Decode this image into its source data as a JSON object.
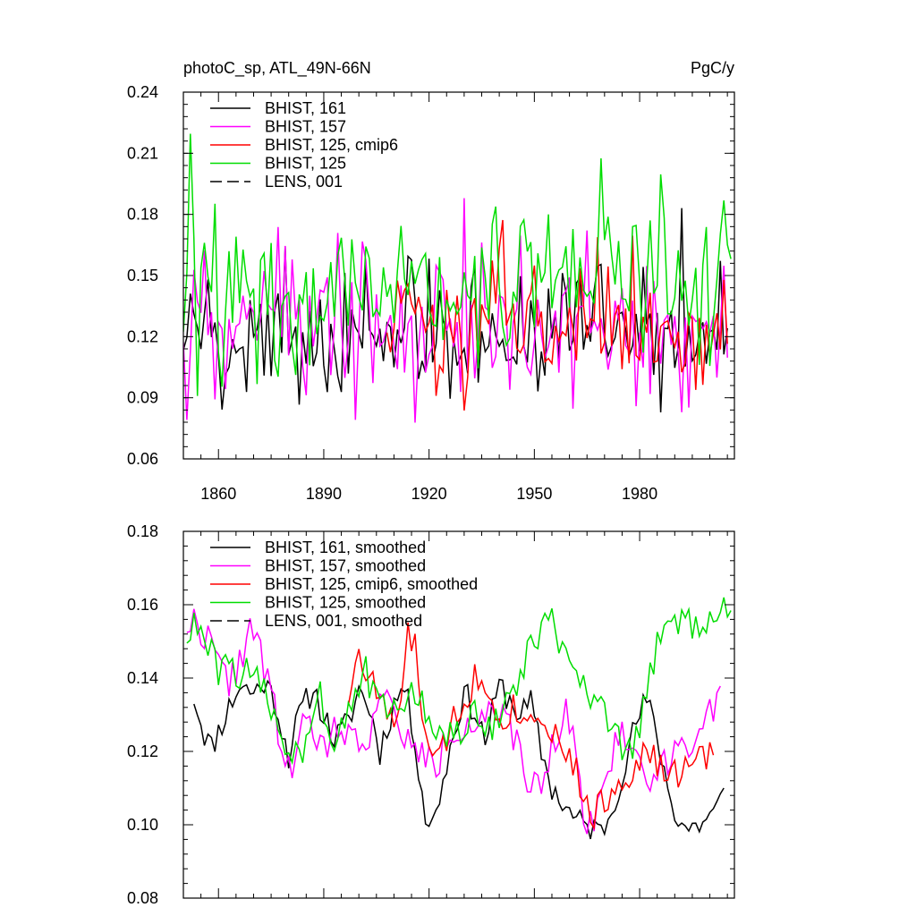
{
  "chart_data": [
    {
      "type": "line",
      "title": "photoC_sp, ATL_49N-66N",
      "units": "PgC/y",
      "xlabel": "",
      "ylabel": "",
      "xlim": [
        1850,
        2007
      ],
      "ylim": [
        0.06,
        0.24
      ],
      "xticks": [
        1860,
        1890,
        1920,
        1950,
        1980
      ],
      "xtick_labels": [
        "1860",
        "1890",
        "1920",
        "1950",
        "1980"
      ],
      "yticks": [
        0.06,
        0.09,
        0.12,
        0.15,
        0.18,
        0.21,
        0.24
      ],
      "ytick_labels": [
        "0.06",
        "0.09",
        "0.12",
        "0.15",
        "0.18",
        "0.21",
        "0.24"
      ],
      "legend_position": "top-left",
      "series": [
        {
          "name": "BHIST, 161",
          "color": "#000000",
          "dash": "solid",
          "x_start": 1850,
          "x_end": 2005,
          "seed": 161,
          "mean": 0.122,
          "amp": 0.026,
          "trend": -0.004
        },
        {
          "name": "BHIST, 157",
          "color": "#ff00ff",
          "dash": "solid",
          "x_start": 1850,
          "x_end": 2005,
          "seed": 157,
          "mean": 0.13,
          "amp": 0.028,
          "trend": -0.01
        },
        {
          "name": "BHIST, 125, cmip6",
          "color": "#ff0000",
          "dash": "solid",
          "x_start": 1908,
          "x_end": 2005,
          "seed": 125,
          "mean": 0.128,
          "amp": 0.025,
          "trend": -0.006
        },
        {
          "name": "BHIST, 125",
          "color": "#00dd00",
          "dash": "solid",
          "x_start": 1850,
          "x_end": 2006,
          "seed": 126,
          "mean": 0.138,
          "amp": 0.03,
          "trend": 0.01
        },
        {
          "name": "LENS, 001",
          "color": "#000000",
          "dash": "dashed",
          "x_start": null,
          "x_end": null
        }
      ]
    },
    {
      "type": "line",
      "title": "",
      "xlabel": "",
      "ylabel": "",
      "xlim": [
        1850,
        2007
      ],
      "ylim": [
        0.08,
        0.18
      ],
      "xticks": [
        1860,
        1890,
        1920,
        1950,
        1980
      ],
      "xtick_labels": [],
      "yticks": [
        0.08,
        0.1,
        0.12,
        0.14,
        0.16,
        0.18
      ],
      "ytick_labels": [
        "0.08",
        "0.10",
        "0.12",
        "0.14",
        "0.16",
        "0.18"
      ],
      "legend_position": "top-left",
      "series": [
        {
          "name": "BHIST, 161, smoothed",
          "color": "#000000",
          "dash": "solid",
          "x_start": 1853,
          "x_end": 2004,
          "anchors": [
            [
              1853,
              0.135
            ],
            [
              1856,
              0.125
            ],
            [
              1858,
              0.121
            ],
            [
              1862,
              0.13
            ],
            [
              1866,
              0.138
            ],
            [
              1870,
              0.136
            ],
            [
              1873,
              0.139
            ],
            [
              1876,
              0.134
            ],
            [
              1880,
              0.119
            ],
            [
              1883,
              0.13
            ],
            [
              1887,
              0.137
            ],
            [
              1890,
              0.13
            ],
            [
              1893,
              0.123
            ],
            [
              1897,
              0.128
            ],
            [
              1900,
              0.137
            ],
            [
              1903,
              0.132
            ],
            [
              1906,
              0.12
            ],
            [
              1910,
              0.133
            ],
            [
              1913,
              0.138
            ],
            [
              1916,
              0.123
            ],
            [
              1919,
              0.102
            ],
            [
              1921,
              0.1
            ],
            [
              1924,
              0.112
            ],
            [
              1927,
              0.125
            ],
            [
              1930,
              0.136
            ],
            [
              1933,
              0.131
            ],
            [
              1936,
              0.123
            ],
            [
              1940,
              0.138
            ],
            [
              1943,
              0.134
            ],
            [
              1946,
              0.13
            ],
            [
              1949,
              0.133
            ],
            [
              1952,
              0.12
            ],
            [
              1955,
              0.11
            ],
            [
              1958,
              0.106
            ],
            [
              1961,
              0.102
            ],
            [
              1964,
              0.1
            ],
            [
              1967,
              0.099
            ],
            [
              1969,
              0.098
            ],
            [
              1972,
              0.104
            ],
            [
              1975,
              0.114
            ],
            [
              1979,
              0.128
            ],
            [
              1982,
              0.134
            ],
            [
              1985,
              0.124
            ],
            [
              1988,
              0.11
            ],
            [
              1991,
              0.101
            ],
            [
              1994,
              0.099
            ],
            [
              1997,
              0.1
            ],
            [
              2001,
              0.103
            ],
            [
              2004,
              0.108
            ]
          ],
          "jitter": 0.004,
          "seed": 11
        },
        {
          "name": "BHIST, 157, smoothed",
          "color": "#ff00ff",
          "dash": "solid",
          "x_start": 1851,
          "x_end": 2003,
          "anchors": [
            [
              1851,
              0.155
            ],
            [
              1854,
              0.155
            ],
            [
              1857,
              0.151
            ],
            [
              1860,
              0.143
            ],
            [
              1863,
              0.139
            ],
            [
              1866,
              0.145
            ],
            [
              1870,
              0.154
            ],
            [
              1872,
              0.146
            ],
            [
              1875,
              0.136
            ],
            [
              1878,
              0.12
            ],
            [
              1881,
              0.115
            ],
            [
              1884,
              0.128
            ],
            [
              1887,
              0.124
            ],
            [
              1891,
              0.12
            ],
            [
              1894,
              0.128
            ],
            [
              1897,
              0.124
            ],
            [
              1900,
              0.122
            ],
            [
              1903,
              0.126
            ],
            [
              1906,
              0.134
            ],
            [
              1909,
              0.132
            ],
            [
              1912,
              0.127
            ],
            [
              1915,
              0.12
            ],
            [
              1918,
              0.119
            ],
            [
              1922,
              0.116
            ],
            [
              1925,
              0.123
            ],
            [
              1928,
              0.127
            ],
            [
              1932,
              0.128
            ],
            [
              1935,
              0.13
            ],
            [
              1938,
              0.129
            ],
            [
              1941,
              0.128
            ],
            [
              1944,
              0.124
            ],
            [
              1947,
              0.115
            ],
            [
              1950,
              0.11
            ],
            [
              1953,
              0.113
            ],
            [
              1956,
              0.125
            ],
            [
              1959,
              0.13
            ],
            [
              1962,
              0.12
            ],
            [
              1964,
              0.105
            ],
            [
              1966,
              0.1
            ],
            [
              1969,
              0.108
            ],
            [
              1972,
              0.118
            ],
            [
              1975,
              0.125
            ],
            [
              1978,
              0.123
            ],
            [
              1981,
              0.114
            ],
            [
              1984,
              0.111
            ],
            [
              1987,
              0.117
            ],
            [
              1990,
              0.122
            ],
            [
              1993,
              0.124
            ],
            [
              1996,
              0.122
            ],
            [
              1999,
              0.128
            ],
            [
              2003,
              0.133
            ]
          ],
          "jitter": 0.005,
          "seed": 22
        },
        {
          "name": "BHIST, 125, cmip6, smoothed",
          "color": "#ff0000",
          "dash": "solid",
          "x_start": 1897,
          "x_end": 2001,
          "anchors": [
            [
              1897,
              0.135
            ],
            [
              1899,
              0.145
            ],
            [
              1901,
              0.143
            ],
            [
              1904,
              0.138
            ],
            [
              1906,
              0.135
            ],
            [
              1909,
              0.128
            ],
            [
              1912,
              0.13
            ],
            [
              1914,
              0.152
            ],
            [
              1916,
              0.148
            ],
            [
              1919,
              0.125
            ],
            [
              1921,
              0.115
            ],
            [
              1924,
              0.12
            ],
            [
              1927,
              0.13
            ],
            [
              1930,
              0.134
            ],
            [
              1933,
              0.14
            ],
            [
              1936,
              0.137
            ],
            [
              1939,
              0.133
            ],
            [
              1942,
              0.13
            ],
            [
              1945,
              0.132
            ],
            [
              1948,
              0.128
            ],
            [
              1951,
              0.132
            ],
            [
              1954,
              0.128
            ],
            [
              1957,
              0.123
            ],
            [
              1960,
              0.12
            ],
            [
              1963,
              0.11
            ],
            [
              1966,
              0.103
            ],
            [
              1969,
              0.105
            ],
            [
              1971,
              0.107
            ],
            [
              1974,
              0.112
            ],
            [
              1977,
              0.115
            ],
            [
              1980,
              0.118
            ],
            [
              1983,
              0.119
            ],
            [
              1986,
              0.115
            ],
            [
              1989,
              0.113
            ],
            [
              1992,
              0.115
            ],
            [
              1995,
              0.116
            ],
            [
              1998,
              0.118
            ],
            [
              2001,
              0.12
            ]
          ],
          "jitter": 0.005,
          "seed": 33
        },
        {
          "name": "BHIST, 125, smoothed",
          "color": "#00dd00",
          "dash": "solid",
          "x_start": 1851,
          "x_end": 2006,
          "anchors": [
            [
              1851,
              0.152
            ],
            [
              1854,
              0.154
            ],
            [
              1857,
              0.148
            ],
            [
              1860,
              0.142
            ],
            [
              1863,
              0.143
            ],
            [
              1866,
              0.142
            ],
            [
              1869,
              0.14
            ],
            [
              1872,
              0.138
            ],
            [
              1875,
              0.132
            ],
            [
              1878,
              0.125
            ],
            [
              1881,
              0.12
            ],
            [
              1883,
              0.118
            ],
            [
              1886,
              0.128
            ],
            [
              1889,
              0.139
            ],
            [
              1891,
              0.127
            ],
            [
              1893,
              0.123
            ],
            [
              1896,
              0.13
            ],
            [
              1899,
              0.138
            ],
            [
              1902,
              0.141
            ],
            [
              1905,
              0.133
            ],
            [
              1908,
              0.131
            ],
            [
              1911,
              0.13
            ],
            [
              1914,
              0.137
            ],
            [
              1917,
              0.135
            ],
            [
              1920,
              0.128
            ],
            [
              1922,
              0.123
            ],
            [
              1925,
              0.125
            ],
            [
              1928,
              0.124
            ],
            [
              1931,
              0.126
            ],
            [
              1934,
              0.131
            ],
            [
              1937,
              0.128
            ],
            [
              1940,
              0.128
            ],
            [
              1943,
              0.135
            ],
            [
              1946,
              0.14
            ],
            [
              1949,
              0.148
            ],
            [
              1952,
              0.155
            ],
            [
              1954,
              0.157
            ],
            [
              1957,
              0.15
            ],
            [
              1960,
              0.142
            ],
            [
              1963,
              0.138
            ],
            [
              1966,
              0.135
            ],
            [
              1969,
              0.13
            ],
            [
              1972,
              0.126
            ],
            [
              1975,
              0.12
            ],
            [
              1978,
              0.122
            ],
            [
              1981,
              0.13
            ],
            [
              1984,
              0.146
            ],
            [
              1987,
              0.152
            ],
            [
              1990,
              0.155
            ],
            [
              1993,
              0.156
            ],
            [
              1996,
              0.154
            ],
            [
              1999,
              0.157
            ],
            [
              2002,
              0.158
            ],
            [
              2006,
              0.16
            ]
          ],
          "jitter": 0.005,
          "seed": 44
        },
        {
          "name": "LENS, 001, smoothed",
          "color": "#000000",
          "dash": "dashed",
          "x_start": null,
          "x_end": null
        }
      ]
    }
  ]
}
